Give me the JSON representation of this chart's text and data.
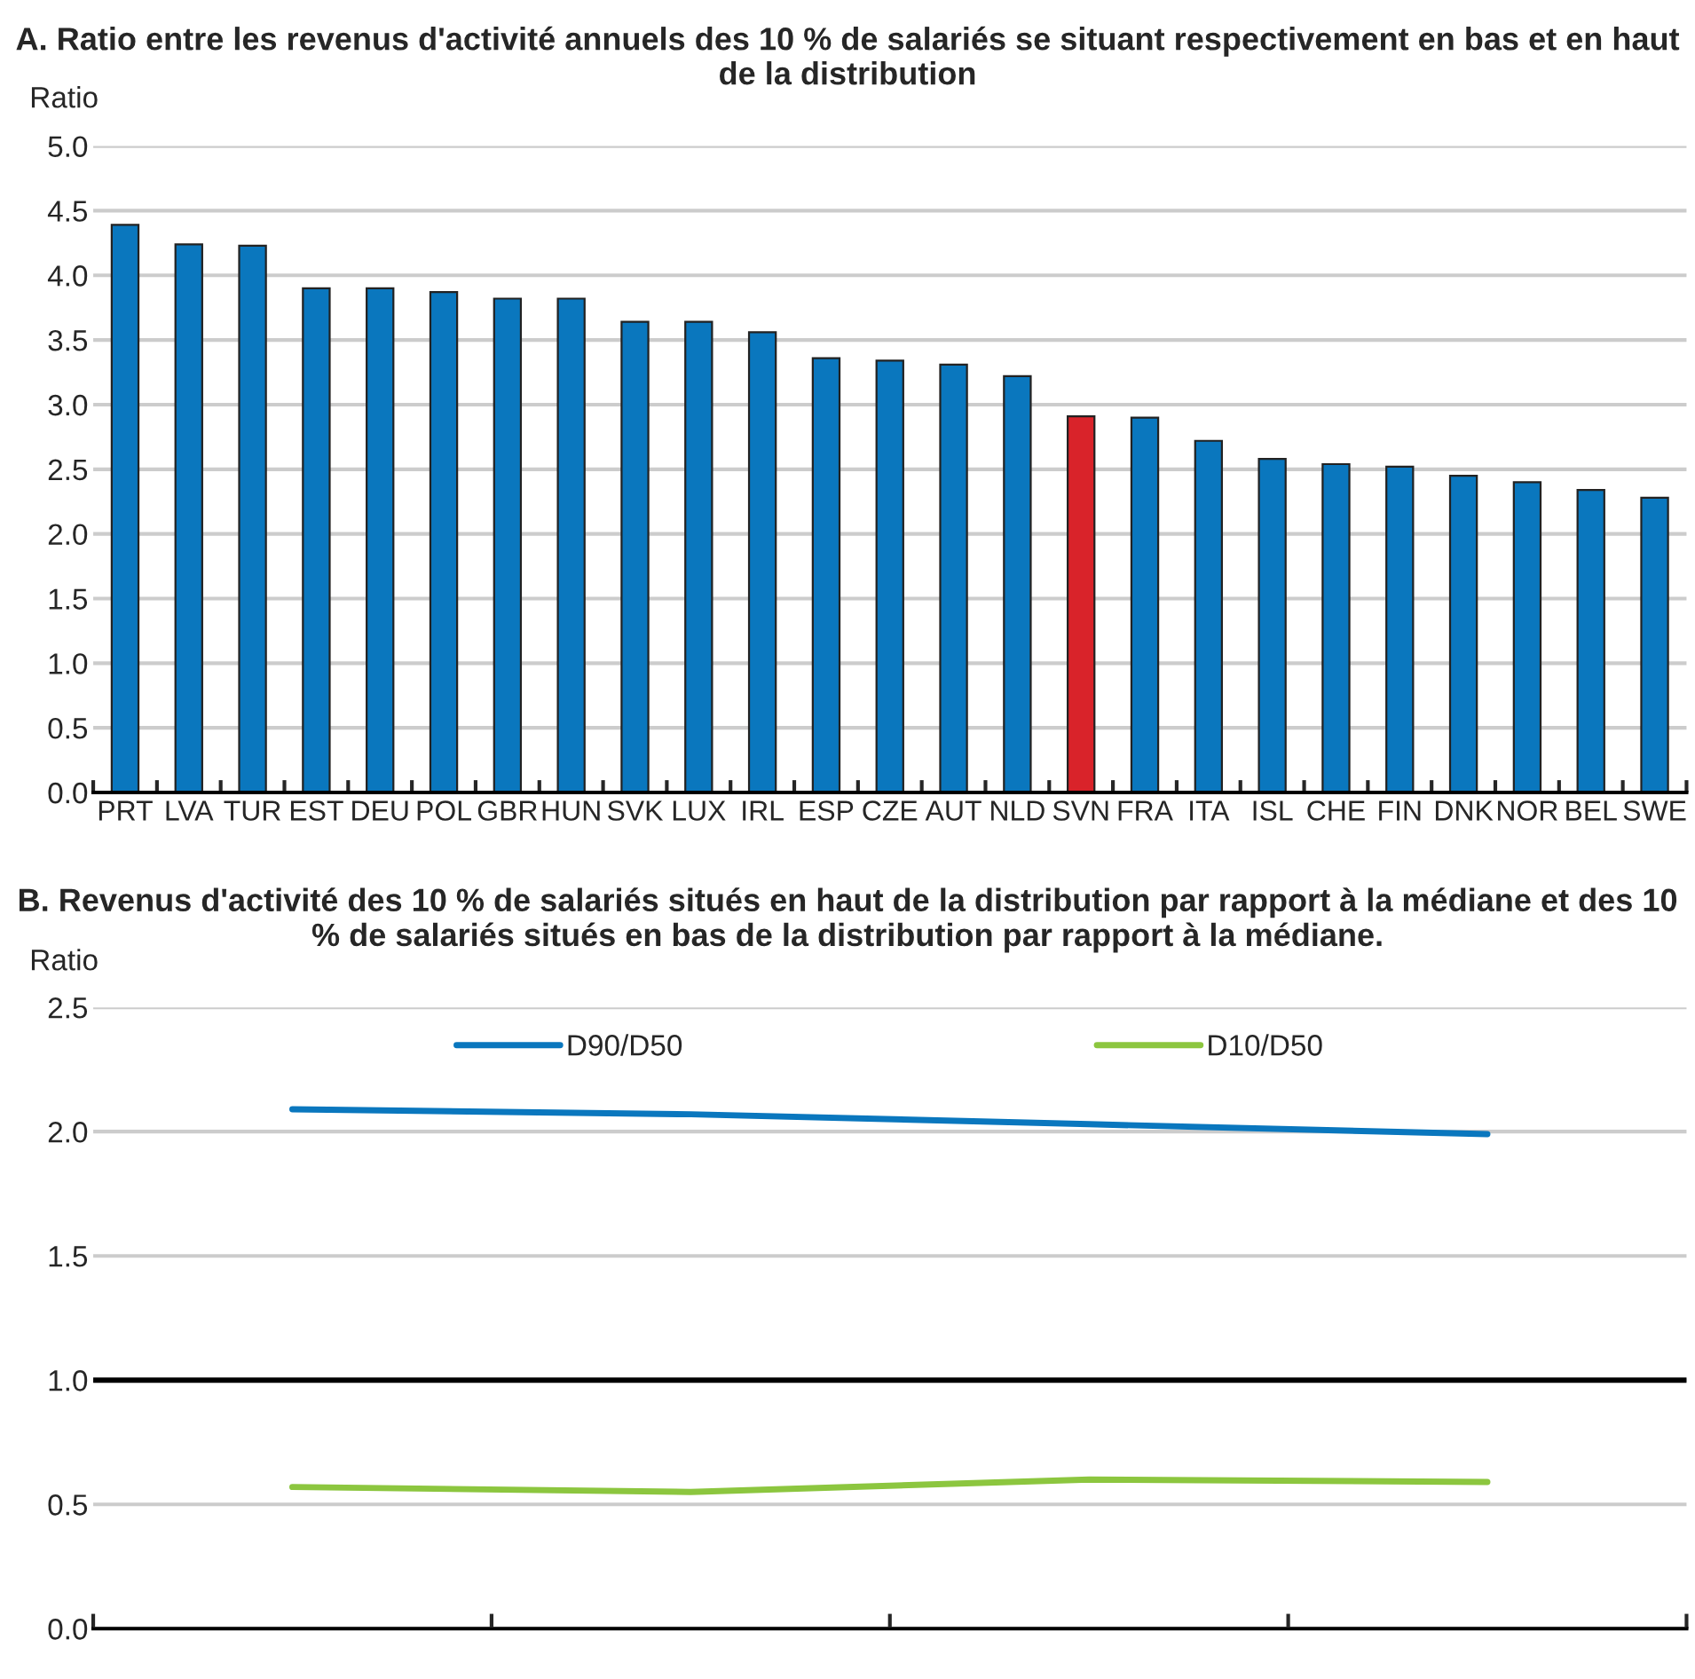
{
  "chart_data": [
    {
      "type": "bar",
      "title": "A. Ratio entre les revenus d'activité annuels des 10 % de salariés se situant respectivement en bas et en haut de la distribution",
      "ylabel": "Ratio",
      "categories": [
        "PRT",
        "LVA",
        "TUR",
        "EST",
        "DEU",
        "POL",
        "GBR",
        "HUN",
        "SVK",
        "LUX",
        "IRL",
        "ESP",
        "CZE",
        "AUT",
        "NLD",
        "SVN",
        "FRA",
        "ITA",
        "ISL",
        "CHE",
        "FIN",
        "DNK",
        "NOR",
        "BEL",
        "SWE"
      ],
      "values": [
        4.39,
        4.24,
        4.23,
        3.9,
        3.9,
        3.87,
        3.82,
        3.82,
        3.64,
        3.64,
        3.56,
        3.36,
        3.34,
        3.31,
        3.22,
        2.91,
        2.9,
        2.72,
        2.58,
        2.54,
        2.52,
        2.45,
        2.4,
        2.34,
        2.28
      ],
      "colors": [
        "#0a77be",
        "#0a77be",
        "#0a77be",
        "#0a77be",
        "#0a77be",
        "#0a77be",
        "#0a77be",
        "#0a77be",
        "#0a77be",
        "#0a77be",
        "#0a77be",
        "#0a77be",
        "#0a77be",
        "#0a77be",
        "#0a77be",
        "#d9232a",
        "#0a77be",
        "#0a77be",
        "#0a77be",
        "#0a77be",
        "#0a77be",
        "#0a77be",
        "#0a77be",
        "#0a77be",
        "#0a77be"
      ],
      "ylim": [
        0,
        5
      ],
      "yticks": [
        {
          "value": 0,
          "label": "0.0"
        },
        {
          "value": 0.5,
          "label": "0.5"
        },
        {
          "value": 1,
          "label": "1.0"
        },
        {
          "value": 1.5,
          "label": "1.5"
        },
        {
          "value": 2,
          "label": "2.0"
        },
        {
          "value": 2.5,
          "label": "2.5"
        },
        {
          "value": 3,
          "label": "3.0"
        },
        {
          "value": 3.5,
          "label": "3.5"
        },
        {
          "value": 4,
          "label": "4.0"
        },
        {
          "value": 4.5,
          "label": "4.5"
        },
        {
          "value": 5,
          "label": "5.0"
        }
      ],
      "grid": "y"
    },
    {
      "type": "line",
      "title": "B. Revenus d'activité des 10 % de salariés situés en haut de la distribution par rapport à la médiane et des 10 % de salariés situés en bas de la distribution par rapport à la médiane.",
      "ylabel": "Ratio",
      "categories": [
        null,
        null,
        null,
        null
      ],
      "series": [
        {
          "name": "D90/D50",
          "color": "#0a77be",
          "values": [
            2.09,
            2.07,
            2.03,
            1.99
          ]
        },
        {
          "name": "D10/D50",
          "color": "#8cc63f",
          "values": [
            0.57,
            0.55,
            0.6,
            0.59
          ]
        }
      ],
      "ylim": [
        0,
        2.5
      ],
      "yticks": [
        {
          "value": 0,
          "label": "0.0"
        },
        {
          "value": 0.5,
          "label": "0.5"
        },
        {
          "value": 1,
          "label": "1.0"
        },
        {
          "value": 1.5,
          "label": "1.5"
        },
        {
          "value": 2,
          "label": "2.0"
        },
        {
          "value": 2.5,
          "label": "2.5"
        }
      ],
      "ref_lines": [
        {
          "axis": "y",
          "value": 1,
          "color": "#000000"
        }
      ],
      "grid": "y",
      "legend": "top",
      "marker": "none",
      "line_style": "solid"
    }
  ]
}
